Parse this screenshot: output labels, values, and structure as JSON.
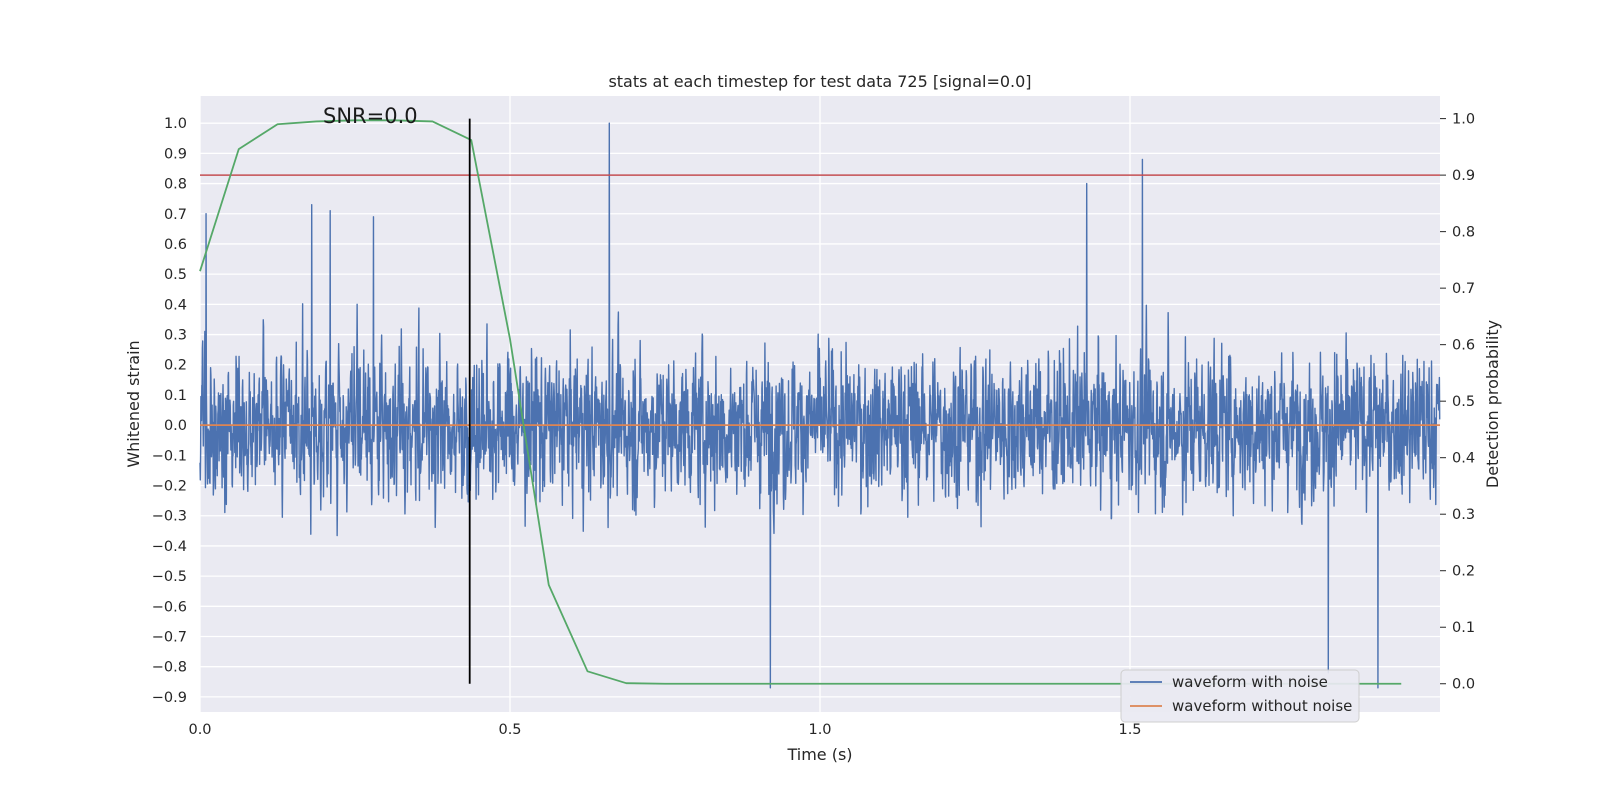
{
  "chart_data": {
    "type": "line",
    "title": "stats at each timestep for test data 725 [signal=0.0]",
    "xlabel": "Time (s)",
    "ylabel_left": "Whitened strain",
    "ylabel_right": "Detection probability",
    "annotation": "SNR=0.0",
    "xlim": [
      0.0,
      2.0
    ],
    "ylim_left": [
      -0.95,
      1.09
    ],
    "ylim_right": [
      -0.05,
      1.04
    ],
    "xticks": [
      "0.0",
      "0.5",
      "1.0",
      "1.5"
    ],
    "yticks_left": [
      "1.0",
      "0.9",
      "0.8",
      "0.7",
      "0.6",
      "0.5",
      "0.4",
      "0.3",
      "0.2",
      "0.1",
      "0.0",
      "−0.1",
      "−0.2",
      "−0.3",
      "−0.4",
      "−0.5",
      "−0.6",
      "−0.7",
      "−0.8",
      "−0.9"
    ],
    "yticks_right": [
      "1.0",
      "0.9",
      "0.8",
      "0.7",
      "0.6",
      "0.5",
      "0.4",
      "0.3",
      "0.2",
      "0.1",
      "0.0"
    ],
    "grid": true,
    "legend_position": "lower-right",
    "series": [
      {
        "name": "waveform with noise",
        "axis": "left",
        "color": "#4c72b0",
        "noise_amplitude_approx": 0.35,
        "sample_peaks": [
          {
            "x": 0.01,
            "y": 0.7
          },
          {
            "x": 0.18,
            "y": 0.73
          },
          {
            "x": 0.21,
            "y": 0.71
          },
          {
            "x": 0.28,
            "y": 0.69
          },
          {
            "x": 0.66,
            "y": 1.0
          },
          {
            "x": 0.92,
            "y": -0.87
          },
          {
            "x": 1.43,
            "y": 0.8
          },
          {
            "x": 1.52,
            "y": 0.88
          },
          {
            "x": 1.82,
            "y": -0.82
          },
          {
            "x": 1.9,
            "y": -0.87
          }
        ]
      },
      {
        "name": "waveform without noise",
        "axis": "left",
        "color": "#dd8452",
        "x": [
          0.0,
          2.0
        ],
        "y": [
          0.0,
          0.0
        ]
      },
      {
        "name": "",
        "axis": "right",
        "color": "#55a868",
        "x": [
          0.0,
          0.0625,
          0.125,
          0.1875,
          0.25,
          0.3125,
          0.375,
          0.4375,
          0.5,
          0.5625,
          0.625,
          0.6875,
          0.75,
          0.8125,
          0.875,
          1.0,
          1.25,
          1.5,
          1.75,
          1.9375
        ],
        "y": [
          0.73,
          0.946,
          0.99,
          0.995,
          0.997,
          0.997,
          0.995,
          0.962,
          0.61,
          0.175,
          0.022,
          0.001,
          0.0,
          0.0,
          0.0,
          0.0,
          0.0,
          0.0,
          0.0,
          0.0
        ]
      }
    ],
    "threshold": {
      "axis": "right",
      "value": 0.9,
      "color": "#c44e52"
    },
    "vline": {
      "x": 0.435,
      "ymin_right": 0.0,
      "ymax_right": 1.0,
      "color": "#000000"
    }
  },
  "colors": {
    "plot_bg": "#eaeaf2",
    "grid": "#ffffff",
    "text": "#262626"
  }
}
